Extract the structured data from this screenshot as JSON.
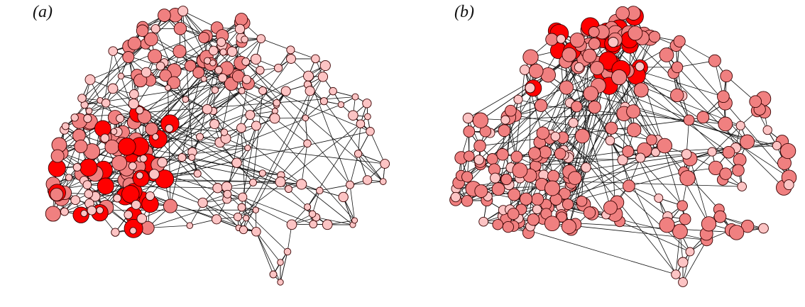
{
  "figure": {
    "panels": [
      {
        "id": "a",
        "label": "(a)",
        "emphasis": "frontal-lobe"
      },
      {
        "id": "b",
        "label": "(b)",
        "emphasis": "parietal-top"
      }
    ],
    "colors": {
      "edge": "#111111",
      "node_stroke": "#3a0000",
      "node_high": "#ff0000",
      "node_mid": "#f08080",
      "node_low": "#fcc4c4"
    }
  }
}
